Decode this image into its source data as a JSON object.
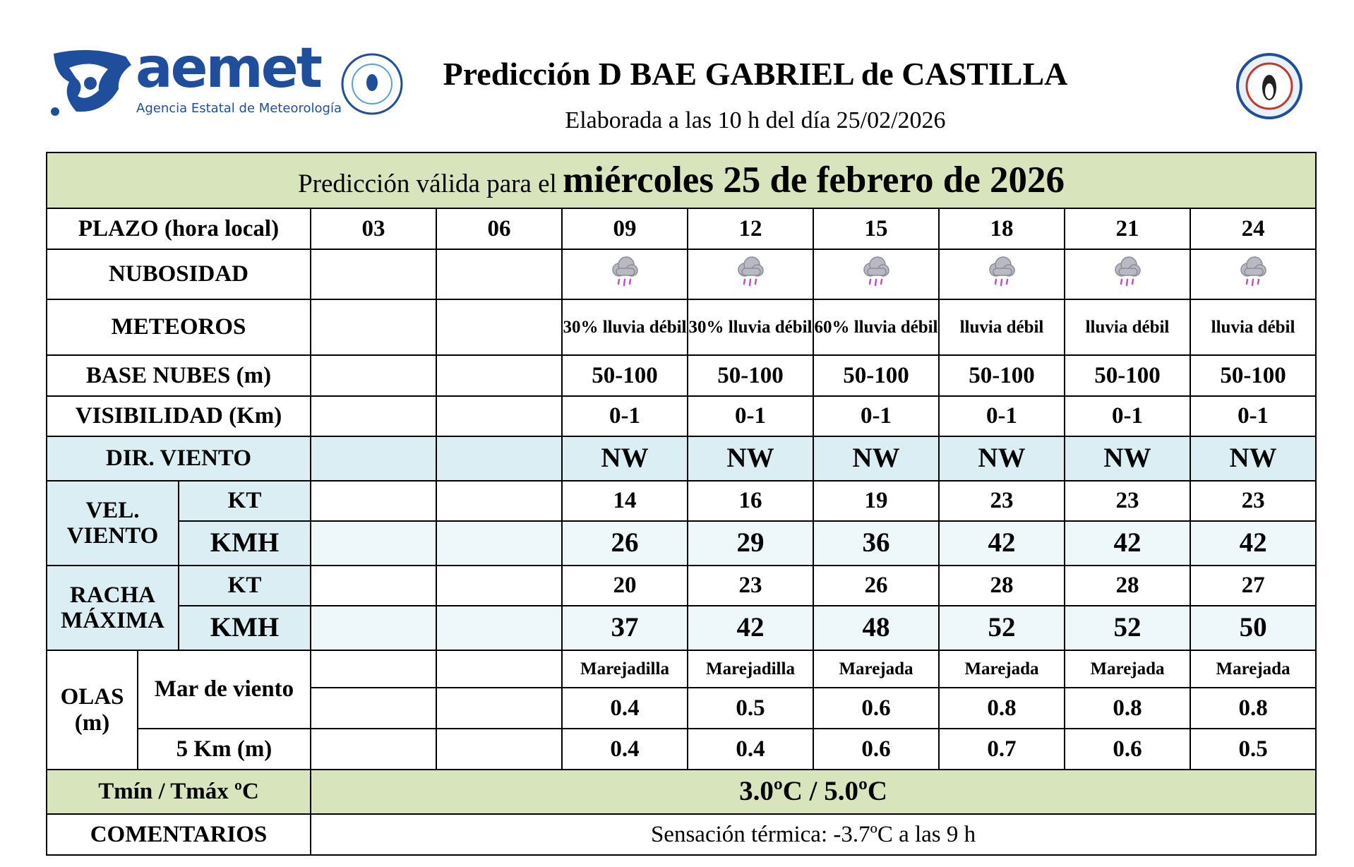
{
  "header": {
    "logo_name": "aemet",
    "logo_subtitle": "Agencia Estatal de Meteorología",
    "title": "Predicción D BAE GABRIEL de CASTILLA",
    "subtitle": "Elaborada a las 10 h del día 25/02/2026"
  },
  "table": {
    "valid_prefix": "Predicción válida para el",
    "valid_date": "miércoles 25 de febrero de 2026",
    "plazo": {
      "label": "PLAZO (hora local)",
      "hours": [
        "03",
        "06",
        "09",
        "12",
        "15",
        "18",
        "21",
        "24"
      ]
    },
    "nubosidad": {
      "label": "NUBOSIDAD"
    },
    "meteoros": {
      "label": "METEOROS",
      "values": [
        null,
        null,
        "30% lluvia débil",
        "30% lluvia débil",
        "60% lluvia débil",
        "lluvia débil",
        "lluvia débil",
        "lluvia débil"
      ]
    },
    "base_nubes": {
      "label": "BASE NUBES (m)",
      "values": [
        null,
        null,
        "50-100",
        "50-100",
        "50-100",
        "50-100",
        "50-100",
        "50-100"
      ]
    },
    "visibilidad": {
      "label": "VISIBILIDAD (Km)",
      "values": [
        null,
        null,
        "0-1",
        "0-1",
        "0-1",
        "0-1",
        "0-1",
        "0-1"
      ]
    },
    "dir_viento": {
      "label": "DIR. VIENTO",
      "values": [
        null,
        null,
        "NW",
        "NW",
        "NW",
        "NW",
        "NW",
        "NW"
      ]
    },
    "vel_viento": {
      "label": "VEL. VIENTO",
      "kt": {
        "label": "KT",
        "values": [
          null,
          null,
          14,
          16,
          19,
          23,
          23,
          23
        ]
      },
      "kmh": {
        "label": "KMH",
        "values": [
          null,
          null,
          26,
          29,
          36,
          42,
          42,
          42
        ]
      }
    },
    "racha_maxima": {
      "label": "RACHA MÁXIMA",
      "kt": {
        "label": "KT",
        "values": [
          null,
          null,
          20,
          23,
          26,
          28,
          28,
          27
        ]
      },
      "kmh": {
        "label": "KMH",
        "values": [
          null,
          null,
          37,
          42,
          48,
          52,
          52,
          50
        ]
      }
    },
    "olas": {
      "label": "OLAS (m)",
      "mar_de_viento": {
        "label": "Mar de viento",
        "states": [
          null,
          null,
          "Marejadilla",
          "Marejadilla",
          "Marejada",
          "Marejada",
          "Marejada",
          "Marejada"
        ],
        "values": [
          null,
          null,
          0.4,
          0.5,
          0.6,
          0.8,
          0.8,
          0.8
        ]
      },
      "five_km": {
        "label": "5 Km (m)",
        "values": [
          null,
          null,
          0.4,
          0.4,
          0.6,
          0.7,
          0.6,
          0.5
        ]
      }
    },
    "temperatura": {
      "label": "Tmín / Tmáx ºC",
      "value": "3.0ºC / 5.0ºC"
    },
    "comentarios": {
      "label": "COMENTARIOS",
      "value": "Sensación térmica: -3.7ºC a las 9 h"
    }
  }
}
